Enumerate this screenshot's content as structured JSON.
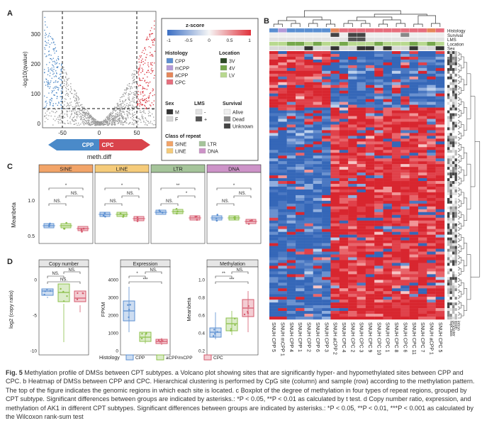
{
  "panelA": {
    "label": "A",
    "ylabel": "-log10(qvalue)",
    "yticks": [
      "300",
      "200",
      "100",
      "0"
    ],
    "xticks": [
      "-50",
      "0",
      "50"
    ],
    "xlabel": "meth.diff",
    "arrow_left": "CPP",
    "arrow_right": "CPC",
    "arrow_left_color": "#4a8ac9",
    "arrow_right_color": "#d9434b"
  },
  "legend": {
    "title": "z-score",
    "scale_ticks": [
      "-1",
      "-0.5",
      "0",
      "0.5",
      "1"
    ],
    "histology_title": "Histology",
    "histology": [
      {
        "label": "CPP",
        "color": "#5b8fd1"
      },
      {
        "label": "mCPP",
        "color": "#b49ad8"
      },
      {
        "label": "aCPP",
        "color": "#e6875a"
      },
      {
        "label": "CPC",
        "color": "#e66e7d"
      }
    ],
    "location_title": "Location",
    "location": [
      {
        "label": "3V",
        "color": "#2e4a26"
      },
      {
        "label": "4V",
        "color": "#76a84c"
      },
      {
        "label": "LV",
        "color": "#b8d98f"
      }
    ],
    "sex_title": "Sex",
    "sex": [
      {
        "label": "M",
        "color": "#333333"
      },
      {
        "label": "F",
        "color": "#d8d8d8"
      }
    ],
    "lms_title": "LMS",
    "lms": [
      {
        "label": "-",
        "color": "#e2e2e2"
      },
      {
        "label": "+",
        "color": "#555555"
      }
    ],
    "survival_title": "Survival",
    "survival": [
      {
        "label": "Alive",
        "color": "#eeeeee"
      },
      {
        "label": "Dead",
        "color": "#888888"
      },
      {
        "label": "Unknown",
        "color": "#444444"
      }
    ],
    "repeat_title": "Class of repeat",
    "repeat": [
      {
        "label": "SINE",
        "color": "#f2a468"
      },
      {
        "label": "LTR",
        "color": "#a5c49a"
      },
      {
        "label": "LINE",
        "color": "#f5cb7a"
      },
      {
        "label": "DNA",
        "color": "#cd93c8"
      }
    ]
  },
  "panelB": {
    "label": "B",
    "row_labels": [
      "Histology",
      "Survival",
      "LMS",
      "Location",
      "Sex"
    ],
    "samples": [
      "SNUH CPP 5",
      "SNUH mCPP 1",
      "SNUH CPP 4",
      "SNUH CPP 1",
      "SNUH CPP 2",
      "SNUH CPP 6",
      "SNUH CPP 3",
      "SNUH aCPP 2",
      "SNUH CPC 4",
      "SNUH CPC 2",
      "SNUH CPC 3",
      "SNUH CPC 9",
      "SNUH CPC 10",
      "SNUH CPC 1",
      "SNUH CPC 8",
      "SNUH CPC 6",
      "SNUH CPC 11",
      "SNUH CPC 7",
      "SNUH aCPP 1",
      "SNUH CPC 5"
    ],
    "side_labels": [
      "repClass",
      "promoter",
      "exon",
      "intron"
    ]
  },
  "panelC": {
    "label": "C",
    "ylabel": "Meanbeta",
    "yticks": [
      "1.0",
      "0.5"
    ],
    "facets": [
      {
        "title": "SINE",
        "color": "#f2a468"
      },
      {
        "title": "LINE",
        "color": "#f5cb7a"
      },
      {
        "title": "LTR",
        "color": "#a5c49a"
      },
      {
        "title": "DNA",
        "color": "#cd93c8"
      }
    ],
    "sig": [
      "*",
      "NS.",
      "NS.",
      "*",
      "NS.",
      "NS.",
      "**",
      "*",
      "NS.",
      "*",
      "NS.",
      "NS."
    ]
  },
  "panelD": {
    "label": "D",
    "subplots": [
      {
        "title": "Copy number",
        "ylabel": "log2 (copy ratio)",
        "yticks": [
          "0",
          "-5",
          "-10"
        ],
        "sig": [
          "NS.",
          "NS.",
          "NS."
        ]
      },
      {
        "title": "Expression",
        "ylabel": "FPKM",
        "yticks": [
          "4000",
          "3000",
          "2000",
          "1000",
          "0"
        ],
        "sig": [
          "*",
          "***",
          "NS."
        ]
      },
      {
        "title": "Methylation",
        "ylabel": "Meanbeta",
        "yticks": [
          "1.0",
          "0.8",
          "0.6",
          "0.4",
          "0.2"
        ],
        "sig": [
          "**",
          "***",
          "NS."
        ]
      }
    ],
    "legend_title": "Histology",
    "legend_items": [
      {
        "label": "CPP",
        "color": "#5b8fd1"
      },
      {
        "label": "aCPP/mCPP",
        "color": "#8cc04b"
      },
      {
        "label": "CPC",
        "color": "#d65a6e"
      }
    ]
  },
  "caption": {
    "fig": "Fig. 5",
    "text": " Methylation profile of DMSs between CPT subtypes. a Volcano plot showing sites that are significantly hyper- and hypomethylated sites between CPP and CPC. b Heatmap of DMSs between CPP and CPC. Hierarchical clustering is performed by CpG site (column) and sample (row) according to the methylation pattern. The top of the figure indicates the genomic regions in which each site is located. c Boxplot of the degree of methylation in four types of repeat regions, grouped by CPT subtype. Significant differences between groups are indicated by asterisks.: *P < 0.05, **P < 0.01 as calculated by t test. d Copy number ratio, expression, and methylation of AK1 in different CPT subtypes. Significant differences between groups are indicated by asterisks.: *P < 0.05, **P < 0.01, ***P < 0.001 as calculated by the Wilcoxon rank-sum test"
  }
}
